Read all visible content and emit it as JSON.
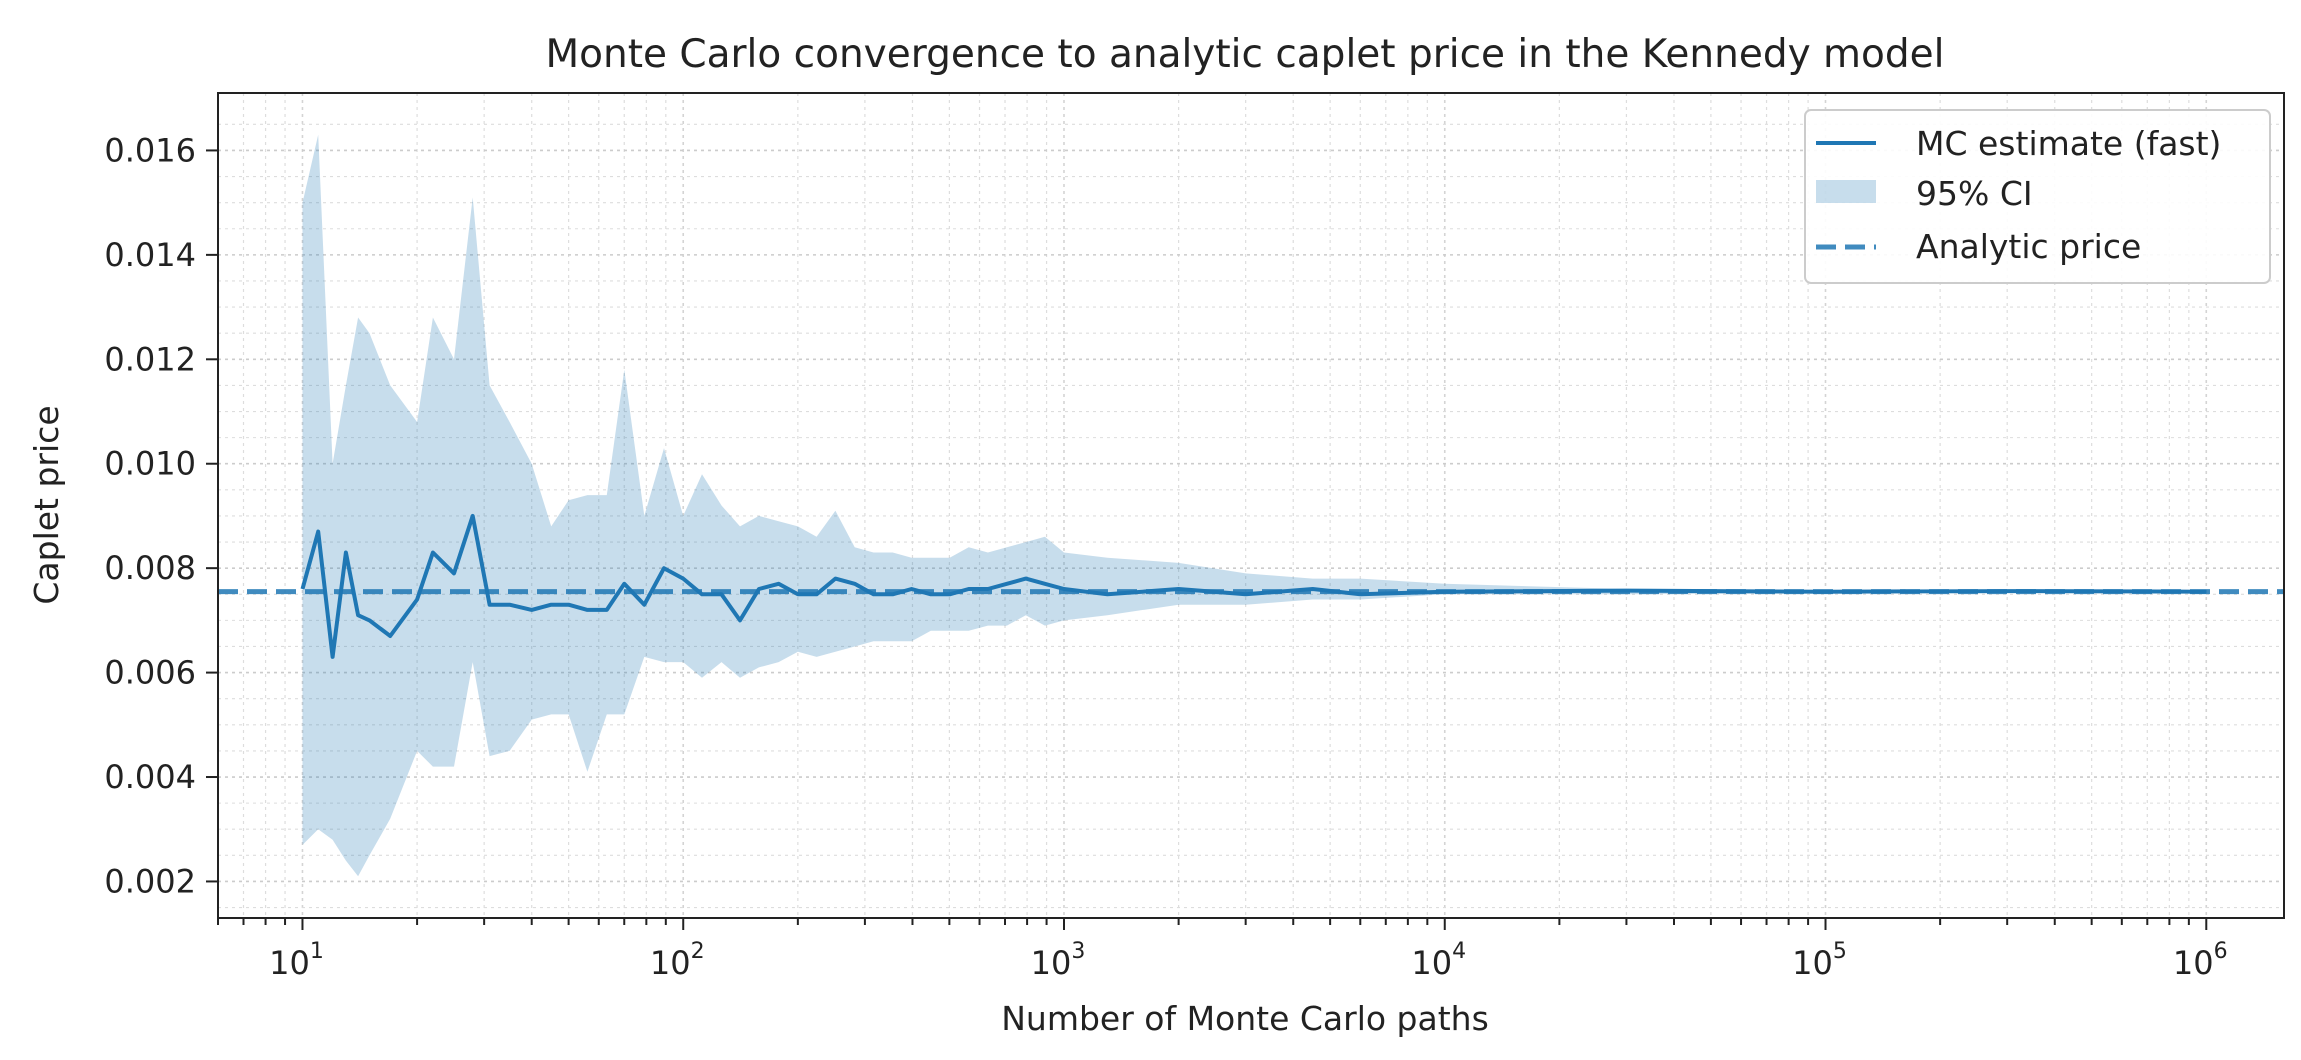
{
  "chart_data": {
    "type": "line",
    "title": "Monte Carlo convergence to analytic caplet price in the Kennedy model",
    "xlabel": "Number of Monte Carlo paths",
    "ylabel": "Caplet price",
    "xscale": "log",
    "xlim": [
      6,
      1600000
    ],
    "ylim": [
      0.0013,
      0.0171
    ],
    "grid": true,
    "legend_position": "upper right",
    "x_ticks": [
      {
        "base": "10",
        "exp": "1",
        "value": 10
      },
      {
        "base": "10",
        "exp": "2",
        "value": 100
      },
      {
        "base": "10",
        "exp": "3",
        "value": 1000
      },
      {
        "base": "10",
        "exp": "4",
        "value": 10000
      },
      {
        "base": "10",
        "exp": "5",
        "value": 100000
      },
      {
        "base": "10",
        "exp": "6",
        "value": 1000000
      }
    ],
    "y_ticks": [
      {
        "label": "0.002",
        "value": 0.002
      },
      {
        "label": "0.004",
        "value": 0.004
      },
      {
        "label": "0.006",
        "value": 0.006
      },
      {
        "label": "0.008",
        "value": 0.008
      },
      {
        "label": "0.010",
        "value": 0.01
      },
      {
        "label": "0.012",
        "value": 0.012
      },
      {
        "label": "0.014",
        "value": 0.014
      },
      {
        "label": "0.016",
        "value": 0.016
      }
    ],
    "analytic_price": 0.00755,
    "series": [
      {
        "name": "MC estimate (fast)",
        "color": "#1f77b4",
        "x": [
          10,
          11,
          12,
          13,
          14,
          15,
          17,
          20,
          22,
          25,
          28,
          31,
          35,
          40,
          45,
          50,
          56,
          63,
          70,
          79,
          89,
          100,
          112,
          126,
          141,
          158,
          178,
          200,
          224,
          251,
          282,
          316,
          355,
          398,
          447,
          501,
          562,
          631,
          708,
          794,
          891,
          1000,
          1300,
          2000,
          3000,
          4500,
          6000,
          10000,
          30000,
          100000,
          300000,
          1000000
        ],
        "values": [
          0.0076,
          0.0087,
          0.0063,
          0.0083,
          0.0071,
          0.007,
          0.0067,
          0.0074,
          0.0083,
          0.0079,
          0.009,
          0.0073,
          0.0073,
          0.0072,
          0.0073,
          0.0073,
          0.0072,
          0.0072,
          0.0077,
          0.0073,
          0.008,
          0.0078,
          0.0075,
          0.0075,
          0.007,
          0.0076,
          0.0077,
          0.0075,
          0.0075,
          0.0078,
          0.0077,
          0.0075,
          0.0075,
          0.0076,
          0.0075,
          0.0075,
          0.0076,
          0.0076,
          0.0077,
          0.0078,
          0.0077,
          0.0076,
          0.0075,
          0.0076,
          0.0075,
          0.0076,
          0.0075,
          0.00755,
          0.00757,
          0.00755,
          0.00756,
          0.00755
        ]
      },
      {
        "name": "95% CI",
        "color": "#1f77b4",
        "opacity": 0.25,
        "x": [
          10,
          11,
          12,
          13,
          14,
          15,
          17,
          20,
          22,
          25,
          28,
          31,
          35,
          40,
          45,
          50,
          56,
          63,
          70,
          79,
          89,
          100,
          112,
          126,
          141,
          158,
          178,
          200,
          224,
          251,
          282,
          316,
          355,
          398,
          447,
          501,
          562,
          631,
          708,
          794,
          891,
          1000,
          1300,
          2000,
          3000,
          4500,
          6000,
          10000,
          30000,
          100000,
          300000,
          1000000
        ],
        "lower": [
          0.0027,
          0.003,
          0.0028,
          0.0024,
          0.0021,
          0.0025,
          0.0032,
          0.0045,
          0.0042,
          0.0042,
          0.0062,
          0.0044,
          0.0045,
          0.0051,
          0.0052,
          0.0052,
          0.0041,
          0.0052,
          0.0052,
          0.0063,
          0.0062,
          0.0062,
          0.0059,
          0.0062,
          0.0059,
          0.0061,
          0.0062,
          0.0064,
          0.0063,
          0.0064,
          0.0065,
          0.0066,
          0.0066,
          0.0066,
          0.0068,
          0.0068,
          0.0068,
          0.0069,
          0.0069,
          0.0071,
          0.0069,
          0.007,
          0.0071,
          0.0073,
          0.0073,
          0.0074,
          0.0074,
          0.0075,
          0.0075,
          0.00752,
          0.00753,
          0.00754
        ],
        "upper": [
          0.015,
          0.0163,
          0.01,
          0.0115,
          0.0128,
          0.0125,
          0.0115,
          0.0108,
          0.0128,
          0.012,
          0.0151,
          0.0115,
          0.0108,
          0.01,
          0.0088,
          0.0093,
          0.0094,
          0.0094,
          0.0118,
          0.009,
          0.0103,
          0.009,
          0.0098,
          0.0092,
          0.0088,
          0.009,
          0.0089,
          0.0088,
          0.0086,
          0.0091,
          0.0084,
          0.0083,
          0.0083,
          0.0082,
          0.0082,
          0.0082,
          0.0084,
          0.0083,
          0.0084,
          0.0085,
          0.0086,
          0.0083,
          0.0082,
          0.0081,
          0.0079,
          0.0078,
          0.0078,
          0.0077,
          0.0076,
          0.00758,
          0.00757,
          0.00756
        ]
      },
      {
        "name": "Analytic price",
        "color": "#1f77b4",
        "style": "dashed",
        "value": 0.00755
      }
    ],
    "legend": [
      {
        "label": "MC estimate (fast)",
        "kind": "line"
      },
      {
        "label": "95% CI",
        "kind": "patch"
      },
      {
        "label": "Analytic price",
        "kind": "dashed"
      }
    ]
  }
}
